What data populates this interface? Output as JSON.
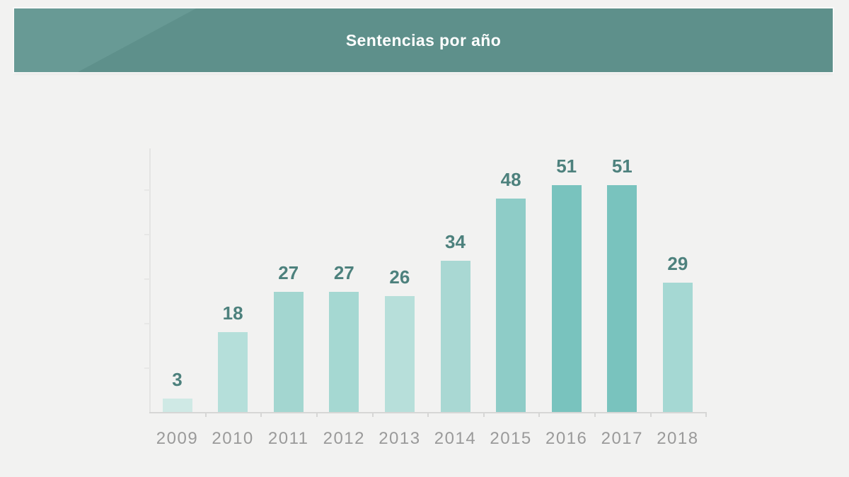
{
  "banner": {
    "title": "Sentencias por año",
    "background_color": "#5e908b",
    "accent_color": "#689a95",
    "title_color": "#ffffff"
  },
  "chart_data": {
    "type": "bar",
    "title": "Sentencias por año",
    "categories": [
      "2009",
      "2010",
      "2011",
      "2012",
      "2013",
      "2014",
      "2015",
      "2016",
      "2017",
      "2018"
    ],
    "values": [
      3,
      18,
      27,
      27,
      26,
      34,
      48,
      51,
      51,
      29
    ],
    "bar_colors": [
      "#cfe9e5",
      "#b5dfda",
      "#a3d6d0",
      "#a5d8d2",
      "#b7dfda",
      "#a9d8d3",
      "#8eccc7",
      "#79c3be",
      "#79c3be",
      "#a5d8d3"
    ],
    "xlabel": "",
    "ylabel": "",
    "ylim": [
      0,
      59
    ],
    "y_tick_interval": 10,
    "y_tick_labels_shown": false,
    "grid": false,
    "legend": false,
    "value_labels_shown": true,
    "value_label_color": "#4d817d",
    "category_label_color": "#9a9a9a",
    "axis_color": "#d6d6d5"
  }
}
